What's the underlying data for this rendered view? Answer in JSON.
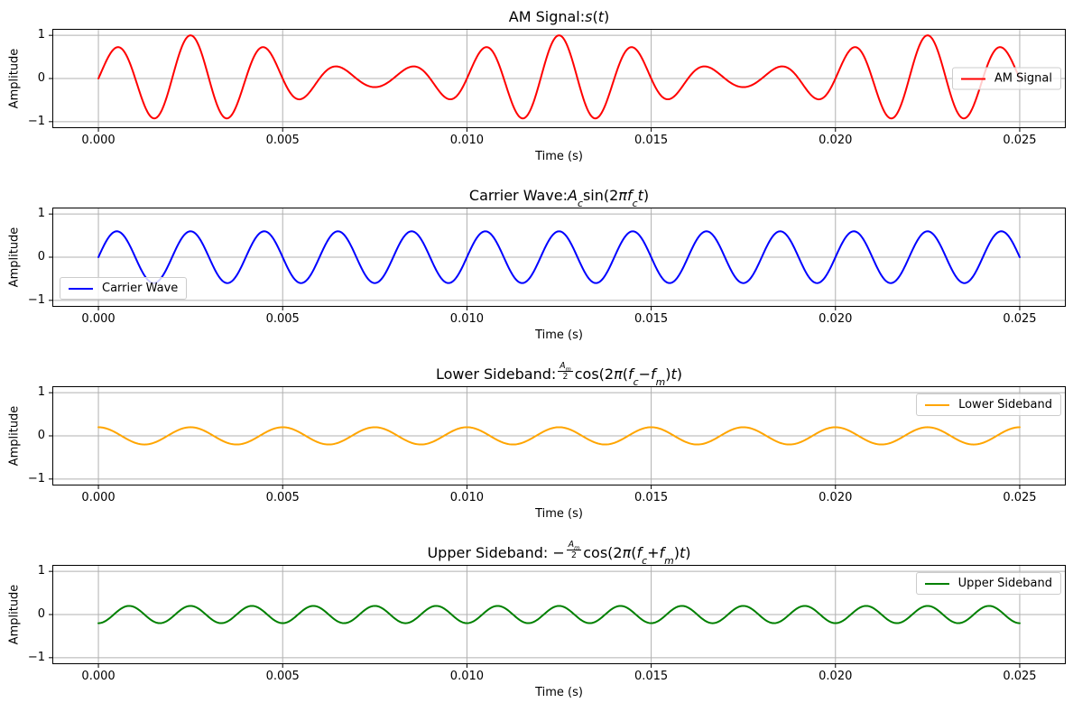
{
  "figure": {
    "background": "#ffffff",
    "xlabel": "Time (s)",
    "ylabel": "Amplitude"
  },
  "axes_config": {
    "xlim": [
      -0.00125,
      0.02625
    ],
    "ylim": [
      -1.15,
      1.15
    ],
    "xticks": [
      0.0,
      0.005,
      0.01,
      0.015,
      0.02,
      0.025
    ],
    "xtick_labels": [
      "0.000",
      "0.005",
      "0.010",
      "0.015",
      "0.020",
      "0.025"
    ],
    "yticks": [
      1,
      0,
      -1
    ],
    "ytick_labels": [
      "1",
      "0",
      "−1"
    ],
    "grid": true,
    "grid_color": "#b0b0b0",
    "frame_color": "#000000"
  },
  "signal_params": {
    "Ac": 0.6,
    "Am": 0.4,
    "fc_hz": 500,
    "fm_hz": 100,
    "t_start_s": 0.0,
    "t_end_s": 0.025,
    "n_samples": 1000
  },
  "chart_data": [
    {
      "type": "line",
      "title": "AM Signal: s(t)",
      "title_parts": [
        {
          "text": "AM Signal: "
        },
        {
          "text": "s",
          "italic": true
        },
        {
          "text": "("
        },
        {
          "text": "t",
          "italic": true
        },
        {
          "text": ")"
        }
      ],
      "xlabel": "Time (s)",
      "ylabel": "Amplitude",
      "series": [
        {
          "name": "AM Signal",
          "color": "#ff0000",
          "formula": "am",
          "waveform": "(Ac + Am*sin(2*pi*fm*t)) * sin(2*pi*fc*t)",
          "envelope_max": 1.0,
          "envelope_min": 0.2,
          "carrier_frequency_hz": 500,
          "modulation_frequency_hz": 100
        }
      ],
      "legend": {
        "label": "AM Signal",
        "loc": "center right"
      }
    },
    {
      "type": "line",
      "title": "Carrier Wave: A_c sin(2πf_c t)",
      "title_parts": [
        {
          "text": "Carrier Wave: "
        },
        {
          "text": "A",
          "italic": true
        },
        {
          "text": "c",
          "italic": true,
          "sub": true
        },
        {
          "text": "sin(2"
        },
        {
          "text": "π",
          "italic": true
        },
        {
          "text": "f",
          "italic": true
        },
        {
          "text": "c",
          "italic": true,
          "sub": true
        },
        {
          "text": "t",
          "italic": true
        },
        {
          "text": ")"
        }
      ],
      "xlabel": "Time (s)",
      "ylabel": "Amplitude",
      "series": [
        {
          "name": "Carrier Wave",
          "color": "#0000ff",
          "formula": "carrier",
          "waveform": "Ac*sin(2*pi*fc*t)",
          "amplitude": 0.6,
          "frequency_hz": 500
        }
      ],
      "legend": {
        "label": "Carrier Wave",
        "loc": "lower left"
      }
    },
    {
      "type": "line",
      "title": "Lower Sideband: (A_m/2)cos(2π(f_c − f_m)t)",
      "title_parts": [
        {
          "text": "Lower Sideband: "
        },
        {
          "frac": {
            "num": [
              {
                "text": "A",
                "italic": true
              },
              {
                "text": "m",
                "italic": true,
                "sub": true
              }
            ],
            "den": "2"
          }
        },
        {
          "text": "cos(2"
        },
        {
          "text": "π",
          "italic": true
        },
        {
          "text": "("
        },
        {
          "text": "f",
          "italic": true
        },
        {
          "text": "c",
          "italic": true,
          "sub": true
        },
        {
          "text": " − "
        },
        {
          "text": "f",
          "italic": true
        },
        {
          "text": "m",
          "italic": true,
          "sub": true
        },
        {
          "text": ")"
        },
        {
          "text": "t",
          "italic": true
        },
        {
          "text": ")"
        }
      ],
      "xlabel": "Time (s)",
      "ylabel": "Amplitude",
      "series": [
        {
          "name": "Lower Sideband",
          "color": "#ffa500",
          "formula": "lsb",
          "waveform": "(Am/2)*cos(2*pi*(fc-fm)*t)",
          "amplitude": 0.2,
          "frequency_hz": 400
        }
      ],
      "legend": {
        "label": "Lower Sideband",
        "loc": "upper right"
      }
    },
    {
      "type": "line",
      "title": "Upper Sideband: −(A_m/2)cos(2π(f_c + f_m)t)",
      "title_parts": [
        {
          "text": "Upper Sideband: −"
        },
        {
          "frac": {
            "num": [
              {
                "text": "A",
                "italic": true
              },
              {
                "text": "m",
                "italic": true,
                "sub": true
              }
            ],
            "den": "2"
          }
        },
        {
          "text": "cos(2"
        },
        {
          "text": "π",
          "italic": true
        },
        {
          "text": "("
        },
        {
          "text": "f",
          "italic": true
        },
        {
          "text": "c",
          "italic": true,
          "sub": true
        },
        {
          "text": " + "
        },
        {
          "text": "f",
          "italic": true
        },
        {
          "text": "m",
          "italic": true,
          "sub": true
        },
        {
          "text": ")"
        },
        {
          "text": "t",
          "italic": true
        },
        {
          "text": ")"
        }
      ],
      "xlabel": "Time (s)",
      "ylabel": "Amplitude",
      "series": [
        {
          "name": "Upper Sideband",
          "color": "#008000",
          "formula": "usb",
          "waveform": "-(Am/2)*cos(2*pi*(fc+fm)*t)",
          "amplitude": 0.2,
          "frequency_hz": 600
        }
      ],
      "legend": {
        "label": "Upper Sideband",
        "loc": "upper right"
      }
    }
  ],
  "legend_style": {
    "background": "rgba(255,255,255,0.8)",
    "border_color": "#cccccc"
  }
}
